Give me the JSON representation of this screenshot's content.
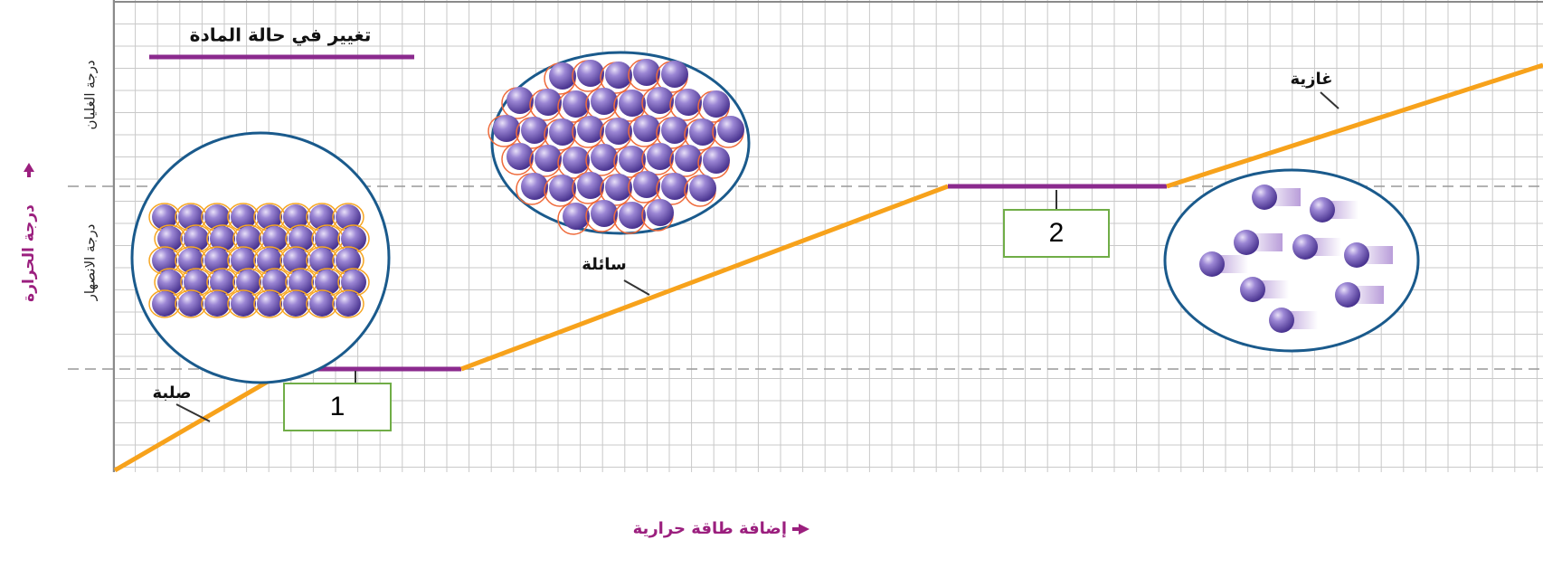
{
  "title": "تغيير في حالة المادة",
  "y_axis": {
    "label": "درجة الحرارة",
    "boiling_point": "درجة الغليان",
    "melting_point": "درجة الانصهار"
  },
  "x_axis": {
    "label": "إضافة طاقة حرارية"
  },
  "phases": {
    "solid": "صلبة",
    "liquid": "سائلة",
    "gas": "غازية"
  },
  "boxes": [
    "1",
    "2"
  ]
}
